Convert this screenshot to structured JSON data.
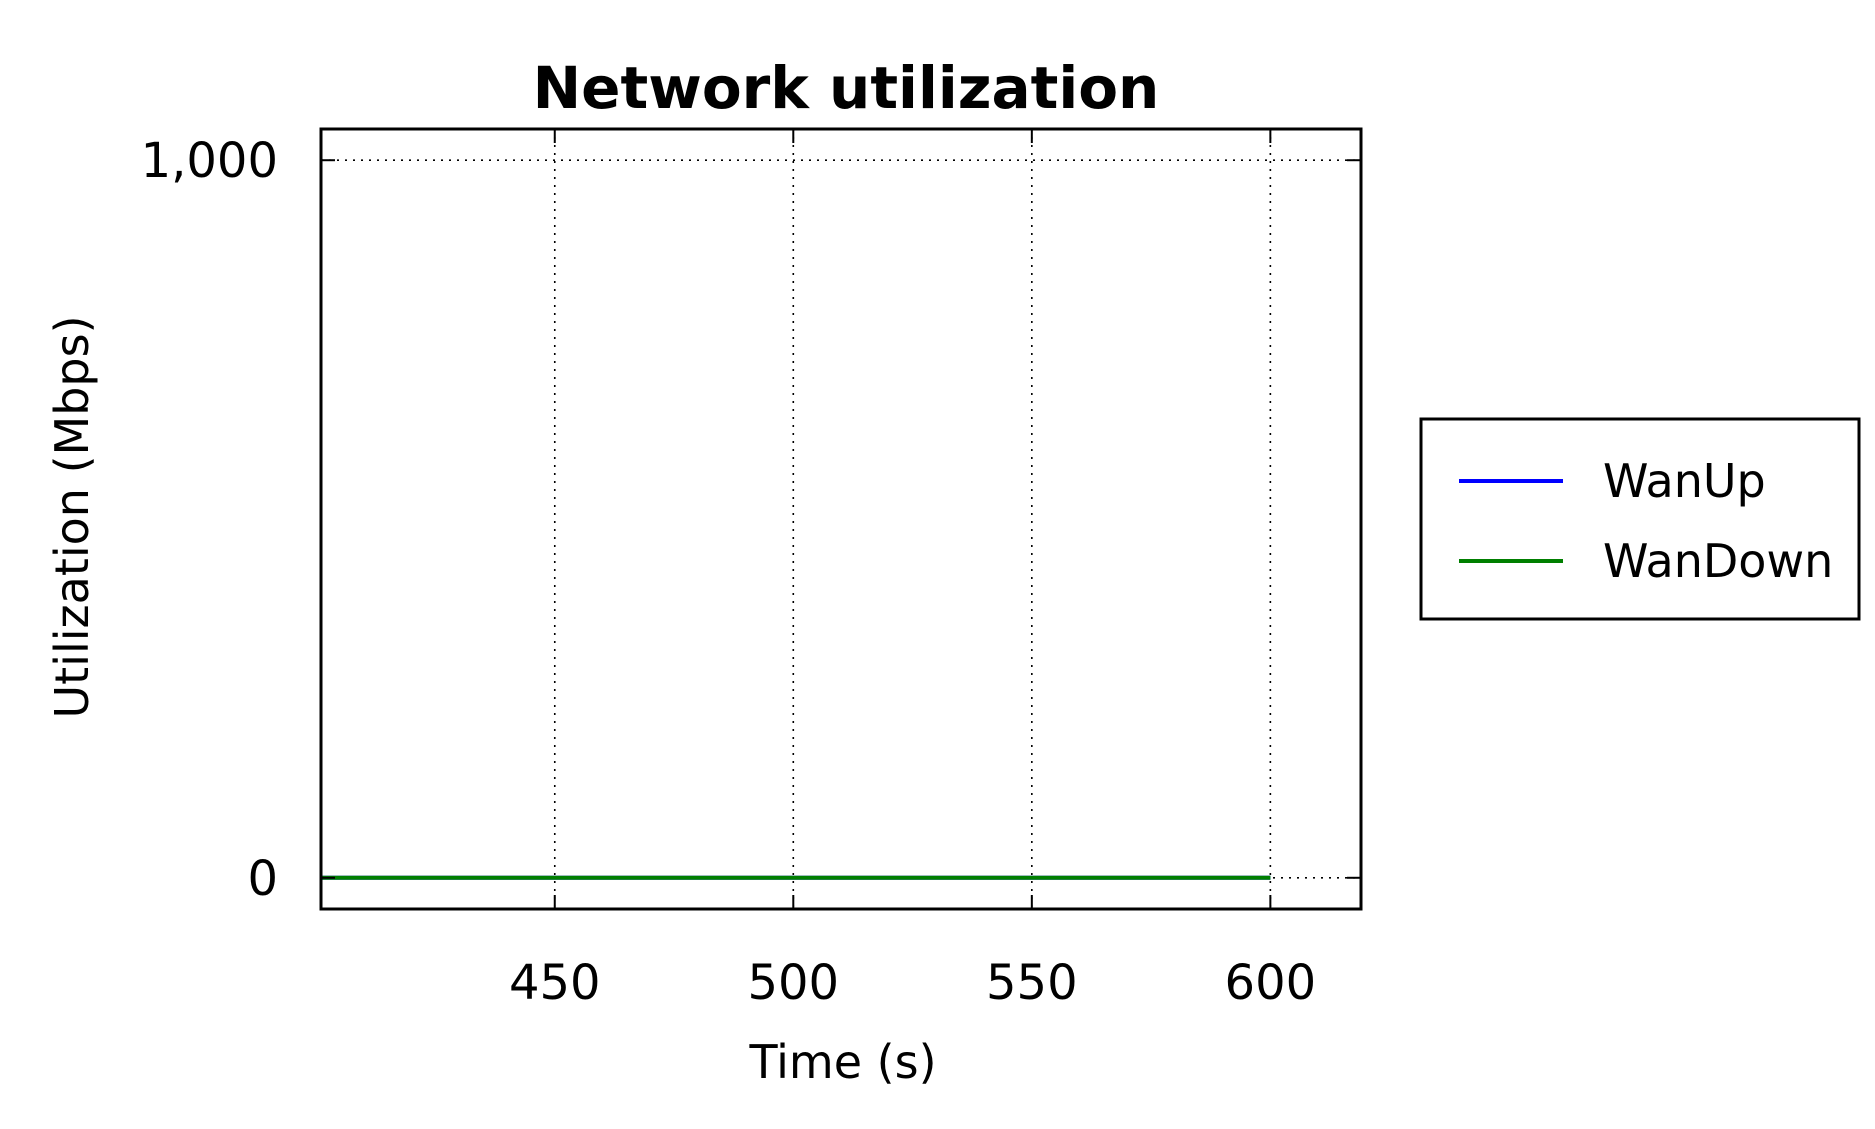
{
  "chart_data": {
    "type": "line",
    "title": "Network utilization",
    "xlabel": "Time (s)",
    "ylabel": "Utilization (Mbps)",
    "xlim": [
      401,
      619
    ],
    "ylim": [
      -43.5,
      1043.5
    ],
    "x_ticks": [
      450,
      500,
      550,
      600
    ],
    "x_tick_labels": [
      "450",
      "500",
      "550",
      "600"
    ],
    "y_ticks": [
      0,
      1000
    ],
    "y_tick_labels": [
      "0",
      "1,000"
    ],
    "grid": true,
    "legend_position": "outside-right",
    "series": [
      {
        "name": "WanUp",
        "color": "#0000ff",
        "x": [
          401,
          600
        ],
        "y": [
          0,
          0
        ]
      },
      {
        "name": "WanDown",
        "color": "#007f00",
        "x": [
          401,
          600
        ],
        "y": [
          0,
          0
        ]
      }
    ]
  }
}
